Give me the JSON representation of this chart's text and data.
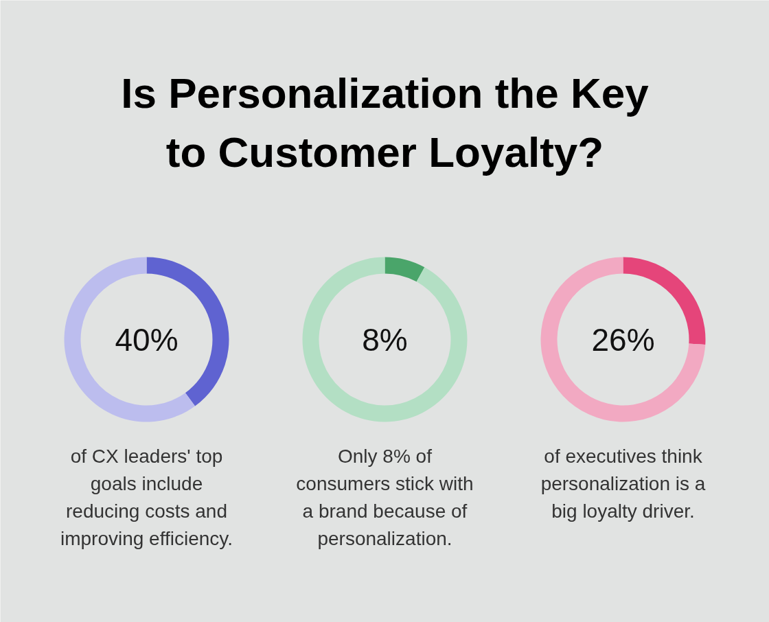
{
  "chart_data": [
    {
      "type": "donut",
      "title": "Is Personalization the Key\nto Customer Loyalty?",
      "categories": [
        null,
        null
      ],
      "values": [
        40,
        60
      ],
      "colors": [
        "#5f63d1",
        "#bcbdee"
      ],
      "value_labels": [
        "40%",
        null
      ],
      "annotations": [
        "of CX leaders' top\ngoals include\nreducing costs and\nimproving efficiency."
      ]
    },
    {
      "type": "donut",
      "categories": [
        null,
        null
      ],
      "values": [
        8,
        92
      ],
      "colors": [
        "#4aa56a",
        "#b3dfc4"
      ],
      "value_labels": [
        "8%",
        null
      ],
      "annotations": [
        "Only 8% of\nconsumers stick with\na brand because of\npersonalization."
      ]
    },
    {
      "type": "donut",
      "categories": [
        null,
        null
      ],
      "values": [
        26,
        74
      ],
      "colors": [
        "#e5457a",
        "#f2a9c2"
      ],
      "value_labels": [
        "26%",
        null
      ],
      "annotations": [
        "of executives think\npersonalization is a\nbig loyalty driver."
      ]
    }
  ]
}
